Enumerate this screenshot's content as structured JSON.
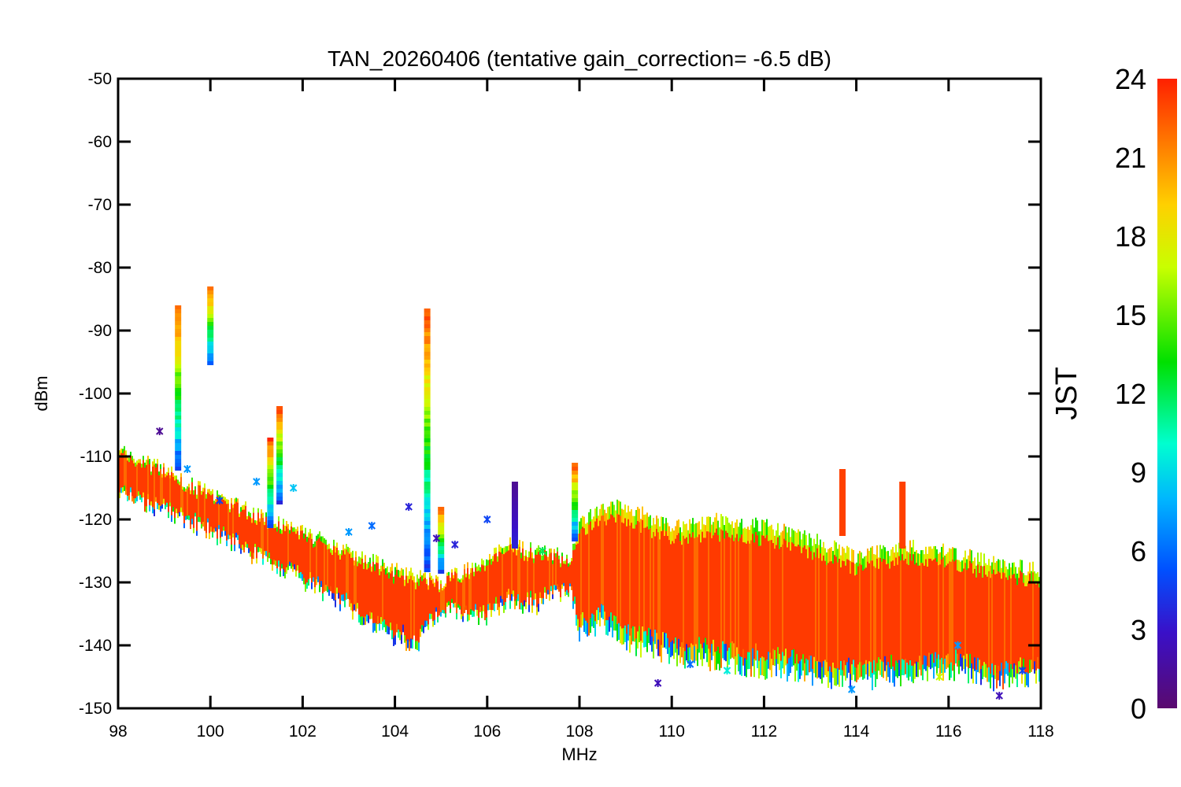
{
  "chart_data": {
    "type": "scatter",
    "title": "TAN_20260406 (tentative gain_correction= -6.5 dB)",
    "xlabel": "MHz",
    "ylabel": "dBm",
    "xlim": [
      98,
      118
    ],
    "ylim": [
      -150,
      -50
    ],
    "x_ticks": [
      98,
      100,
      102,
      104,
      106,
      108,
      110,
      112,
      114,
      116,
      118
    ],
    "y_ticks": [
      -50,
      -60,
      -70,
      -80,
      -90,
      -100,
      -110,
      -120,
      -130,
      -140,
      -150
    ],
    "grid": false,
    "colorbar": {
      "label": "JST",
      "range": [
        0,
        24
      ],
      "ticks": [
        0,
        3,
        6,
        9,
        12,
        15,
        18,
        21,
        24
      ]
    },
    "noise_floor": {
      "description": "band envelope of noise floor (upper/lower dBm vs MHz)",
      "x": [
        98,
        99,
        100,
        101,
        102,
        103,
        104,
        104.5,
        105,
        106,
        106.5,
        107,
        107.8,
        108,
        108.5,
        109,
        110,
        111,
        112,
        113,
        114,
        115,
        116,
        117,
        118
      ],
      "upper": [
        -109,
        -112,
        -116,
        -119,
        -122,
        -125,
        -128,
        -129,
        -130,
        -126,
        -124,
        -125,
        -126,
        -121,
        -118,
        -118,
        -121,
        -120,
        -121,
        -123,
        -126,
        -124,
        -125,
        -127,
        -128
      ],
      "lower": [
        -116,
        -119,
        -122,
        -126,
        -130,
        -134,
        -139,
        -140,
        -134,
        -136,
        -133,
        -134,
        -131,
        -138,
        -137,
        -140,
        -142,
        -143,
        -144,
        -145,
        -146,
        -145,
        -144,
        -146,
        -145
      ]
    },
    "spikes": [
      {
        "x": 99.3,
        "top": -86,
        "bottom": -112
      },
      {
        "x": 100.0,
        "top": -83,
        "bottom": -95
      },
      {
        "x": 101.3,
        "top": -107,
        "bottom": -121
      },
      {
        "x": 101.5,
        "top": -102,
        "bottom": -117
      },
      {
        "x": 104.7,
        "top": -86.5,
        "bottom": -128
      },
      {
        "x": 105.0,
        "top": -118,
        "bottom": -128
      },
      {
        "x": 106.6,
        "top": -114,
        "bottom": -124
      },
      {
        "x": 107.9,
        "top": -111,
        "bottom": -123
      },
      {
        "x": 113.7,
        "top": -112,
        "bottom": -122
      },
      {
        "x": 115.0,
        "top": -114,
        "bottom": -124
      }
    ]
  }
}
